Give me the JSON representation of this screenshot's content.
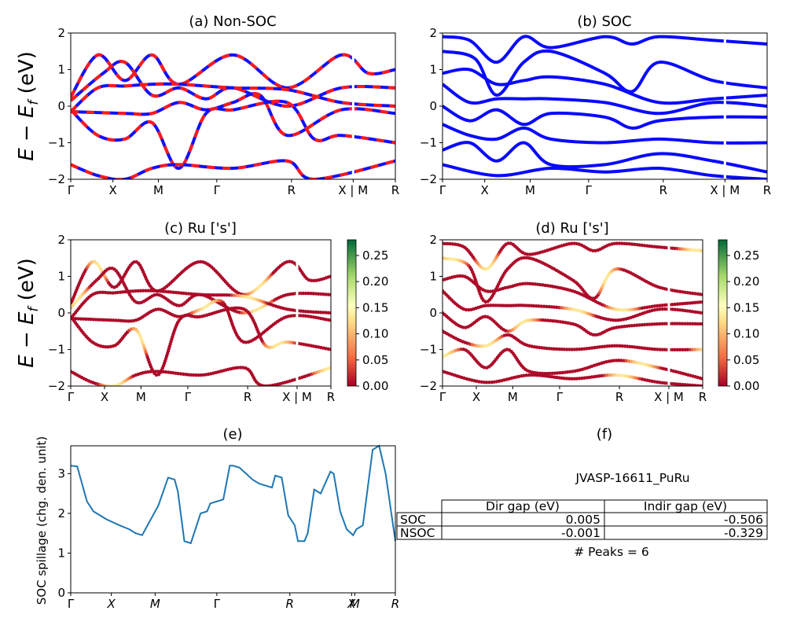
{
  "figure": {
    "titles": {
      "a": "(a) Non-SOC",
      "b": "(b) SOC",
      "c": "(c)  Ru ['s']",
      "d": "(d) Ru ['s']",
      "e": "(e)",
      "f": "(f)"
    },
    "band_ylabel": "E − E_f (eV)",
    "spillage_ylabel": "SOC spillage (chg. den. unit)",
    "colors": {
      "nonsoc_red": "#ff1a1a",
      "nonsoc_blue": "#1010ff",
      "soc_blue": "#0a0aff",
      "spillage_line": "#1f77b4"
    }
  },
  "chart_data": [
    {
      "panel": "a",
      "type": "line",
      "title": "(a) Non-SOC",
      "ylabel": "E − E_f (eV)",
      "ylim": [
        -2,
        2
      ],
      "yticks": [
        "2",
        "1",
        "0",
        "−1",
        "−2"
      ],
      "xticks": [
        "Γ",
        "X",
        "M",
        "Γ",
        "R",
        "X | M",
        "R"
      ],
      "series": [
        {
          "path": [
            [
              0,
              0.25
            ],
            [
              0.5,
              1.4
            ],
            [
              1,
              0.7
            ],
            [
              1.5,
              1.4
            ],
            [
              2,
              0.6
            ],
            [
              3,
              1.4
            ],
            [
              4,
              0.5
            ],
            [
              5,
              1.4
            ],
            [
              5.5,
              0.9
            ],
            [
              6,
              1.0
            ]
          ]
        },
        {
          "path": [
            [
              0,
              0.15
            ],
            [
              0.6,
              0.9
            ],
            [
              1,
              1.2
            ],
            [
              1.5,
              0.3
            ],
            [
              2,
              0.5
            ],
            [
              2.5,
              0.2
            ],
            [
              3,
              0.5
            ],
            [
              4,
              0.0
            ],
            [
              5,
              0.5
            ],
            [
              6,
              0.5
            ]
          ]
        },
        {
          "path": [
            [
              0,
              -0.15
            ],
            [
              0.5,
              0.5
            ],
            [
              1,
              0.55
            ],
            [
              1.5,
              0.6
            ],
            [
              2,
              0.6
            ],
            [
              3,
              0.5
            ],
            [
              4,
              0.45
            ],
            [
              5,
              0.1
            ],
            [
              6,
              0.0
            ]
          ]
        },
        {
          "path": [
            [
              0,
              -0.15
            ],
            [
              1,
              -0.2
            ],
            [
              1.5,
              -0.2
            ],
            [
              2,
              0.1
            ],
            [
              2.5,
              -0.1
            ],
            [
              3,
              0.1
            ],
            [
              3.5,
              0.3
            ],
            [
              4,
              -0.8
            ],
            [
              5,
              -0.1
            ],
            [
              6,
              -0.2
            ]
          ]
        },
        {
          "path": [
            [
              0,
              -0.1
            ],
            [
              0.5,
              -0.8
            ],
            [
              1,
              -0.9
            ],
            [
              1.5,
              -0.45
            ],
            [
              2,
              -1.7
            ],
            [
              2.5,
              -0.2
            ],
            [
              3,
              -0.1
            ],
            [
              4,
              0.1
            ],
            [
              4.5,
              -0.9
            ],
            [
              5,
              -0.8
            ],
            [
              6,
              -1.0
            ]
          ]
        },
        {
          "path": [
            [
              0,
              -1.6
            ],
            [
              0.5,
              -1.9
            ],
            [
              1,
              -2.0
            ],
            [
              1.5,
              -1.7
            ],
            [
              2,
              -1.6
            ],
            [
              3,
              -1.7
            ],
            [
              4,
              -1.5
            ],
            [
              4.5,
              -2.0
            ],
            [
              6,
              -1.5
            ]
          ]
        }
      ]
    },
    {
      "panel": "b",
      "type": "line",
      "title": "(b) SOC",
      "ylim": [
        -2,
        2
      ],
      "yticks": [
        "2",
        "1",
        "0",
        "−1",
        "−2"
      ],
      "xticks": [
        "Γ",
        "X",
        "M",
        "Γ",
        "R",
        "X | M",
        "R"
      ],
      "series": [
        {
          "path": [
            [
              0,
              1.9
            ],
            [
              0.5,
              1.8
            ],
            [
              1,
              1.2
            ],
            [
              1.5,
              1.9
            ],
            [
              2,
              1.6
            ],
            [
              3,
              1.9
            ],
            [
              3.5,
              1.7
            ],
            [
              4,
              1.9
            ],
            [
              5,
              1.8
            ],
            [
              6,
              1.7
            ]
          ]
        },
        {
          "path": [
            [
              0,
              1.5
            ],
            [
              0.6,
              1.3
            ],
            [
              1,
              0.3
            ],
            [
              1.5,
              1.2
            ],
            [
              2,
              1.5
            ],
            [
              3,
              0.9
            ],
            [
              3.5,
              0.4
            ],
            [
              4,
              1.2
            ],
            [
              5,
              0.7
            ],
            [
              6,
              0.5
            ]
          ]
        },
        {
          "path": [
            [
              0,
              0.9
            ],
            [
              0.5,
              1.0
            ],
            [
              1,
              0.6
            ],
            [
              1.5,
              0.7
            ],
            [
              2,
              0.8
            ],
            [
              3,
              0.6
            ],
            [
              4,
              0.1
            ],
            [
              5,
              0.2
            ],
            [
              6,
              0.3
            ]
          ]
        },
        {
          "path": [
            [
              0,
              0.6
            ],
            [
              0.5,
              0.1
            ],
            [
              1,
              0.2
            ],
            [
              1.5,
              0.2
            ],
            [
              2,
              0.2
            ],
            [
              3,
              0.1
            ],
            [
              4,
              -0.2
            ],
            [
              5,
              0.1
            ],
            [
              6,
              0.0
            ]
          ]
        },
        {
          "path": [
            [
              0,
              0.0
            ],
            [
              0.5,
              -0.4
            ],
            [
              1,
              -0.1
            ],
            [
              1.5,
              -0.5
            ],
            [
              2,
              -0.2
            ],
            [
              3,
              -0.3
            ],
            [
              3.5,
              -0.6
            ],
            [
              4,
              -0.4
            ],
            [
              5,
              -0.3
            ],
            [
              6,
              -0.3
            ]
          ]
        },
        {
          "path": [
            [
              0,
              -0.5
            ],
            [
              0.5,
              -0.8
            ],
            [
              1,
              -0.9
            ],
            [
              1.5,
              -0.6
            ],
            [
              2,
              -0.9
            ],
            [
              3,
              -1.0
            ],
            [
              4,
              -0.9
            ],
            [
              5,
              -1.0
            ],
            [
              6,
              -1.0
            ]
          ]
        },
        {
          "path": [
            [
              0,
              -1.2
            ],
            [
              0.5,
              -1.0
            ],
            [
              1,
              -1.5
            ],
            [
              1.5,
              -1.0
            ],
            [
              2,
              -1.6
            ],
            [
              3,
              -1.6
            ],
            [
              4,
              -1.3
            ],
            [
              5,
              -1.5
            ],
            [
              6,
              -1.8
            ]
          ]
        },
        {
          "path": [
            [
              0,
              -1.6
            ],
            [
              1,
              -1.9
            ],
            [
              2,
              -1.7
            ],
            [
              3,
              -1.8
            ],
            [
              4,
              -1.7
            ],
            [
              5,
              -1.9
            ],
            [
              6,
              -2.0
            ]
          ]
        }
      ]
    },
    {
      "panel": "c",
      "type": "scatter",
      "title": "(c)  Ru ['s']",
      "ylabel": "E − E_f (eV)",
      "ylim": [
        -2,
        2
      ],
      "yticks": [
        "2",
        "1",
        "0",
        "−1",
        "−2"
      ],
      "xticks": [
        "Γ",
        "X",
        "M",
        "Γ",
        "R",
        "X | M",
        "R"
      ],
      "colorbar": {
        "min": 0.0,
        "max": 0.28,
        "ticks": [
          "0.25",
          "0.20",
          "0.15",
          "0.10",
          "0.05",
          "0.00"
        ]
      }
    },
    {
      "panel": "d",
      "type": "scatter",
      "title": "(d) Ru ['s']",
      "ylim": [
        -2,
        2
      ],
      "yticks": [
        "2",
        "1",
        "0",
        "−1",
        "−2"
      ],
      "xticks": [
        "Γ",
        "X",
        "M",
        "Γ",
        "R",
        "X | M",
        "R"
      ],
      "colorbar": {
        "min": 0.0,
        "max": 0.28,
        "ticks": [
          "0.25",
          "0.20",
          "0.15",
          "0.10",
          "0.05",
          "0.00"
        ]
      }
    },
    {
      "panel": "e",
      "type": "line",
      "title": "(e)",
      "ylabel": "SOC spillage (chg. den. unit)",
      "ylim": [
        0,
        3.7
      ],
      "yticks": [
        "3",
        "2",
        "1",
        "0"
      ],
      "xticks": [
        "Γ",
        "X",
        "M",
        "Γ",
        "R",
        "X",
        "M",
        "R"
      ],
      "x": [
        0,
        0.02,
        0.05,
        0.07,
        0.11,
        0.15,
        0.18,
        0.2,
        0.22,
        0.25,
        0.27,
        0.3,
        0.32,
        0.33,
        0.35,
        0.37,
        0.4,
        0.42,
        0.43,
        0.45,
        0.47,
        0.49,
        0.5,
        0.52,
        0.54,
        0.56,
        0.58,
        0.6,
        0.62,
        0.63,
        0.65,
        0.67,
        0.69,
        0.7,
        0.72,
        0.73,
        0.75,
        0.77,
        0.8,
        0.81,
        0.83,
        0.85,
        0.87,
        0.88,
        0.9,
        0.93,
        0.95,
        0.97,
        1.0
      ],
      "values": [
        3.2,
        3.18,
        2.3,
        2.05,
        1.85,
        1.7,
        1.6,
        1.5,
        1.45,
        1.9,
        2.2,
        2.9,
        2.85,
        2.55,
        1.3,
        1.25,
        2.0,
        2.05,
        2.25,
        2.3,
        2.35,
        3.2,
        3.2,
        3.15,
        3.0,
        2.85,
        2.75,
        2.7,
        2.65,
        2.95,
        2.9,
        1.95,
        1.7,
        1.3,
        1.3,
        1.5,
        2.6,
        2.5,
        3.05,
        3.0,
        2.05,
        1.6,
        1.45,
        1.6,
        1.7,
        3.6,
        3.7,
        3.0,
        1.3
      ]
    }
  ],
  "info_panel": {
    "material": "JVASP-16611_PuRu",
    "table": {
      "headers": [
        "Dir gap (eV)",
        "Indir gap (eV)"
      ],
      "rows": [
        {
          "label": "SOC",
          "dir": "0.005",
          "indir": "-0.506"
        },
        {
          "label": "NSOC",
          "dir": "-0.001",
          "indir": "-0.329"
        }
      ]
    },
    "peaks": "# Peaks = 6"
  }
}
